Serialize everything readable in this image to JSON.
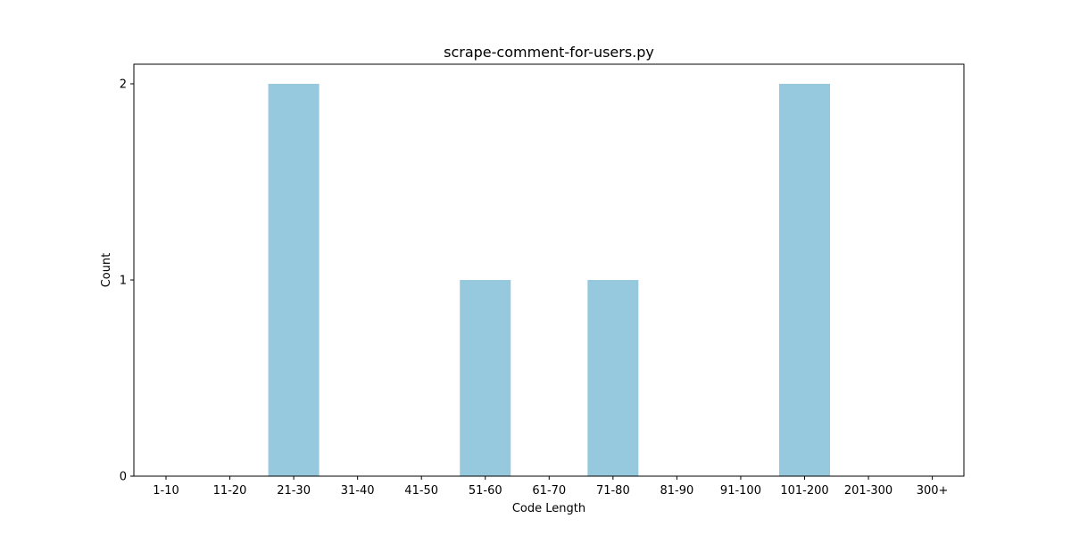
{
  "chart_data": {
    "type": "bar",
    "title": "scrape-comment-for-users.py",
    "xlabel": "Code Length",
    "ylabel": "Count",
    "categories": [
      "1-10",
      "11-20",
      "21-30",
      "31-40",
      "41-50",
      "51-60",
      "61-70",
      "71-80",
      "81-90",
      "91-100",
      "101-200",
      "201-300",
      "300+"
    ],
    "values": [
      0,
      0,
      2,
      0,
      0,
      1,
      0,
      1,
      0,
      0,
      2,
      0,
      0
    ],
    "ylim": [
      0,
      2.1
    ],
    "yticks": [
      0,
      1,
      2
    ],
    "ytick_labels": [
      "0",
      "1",
      "2"
    ],
    "bar_color": "#96c9dd",
    "grid": false,
    "legend": "none"
  }
}
